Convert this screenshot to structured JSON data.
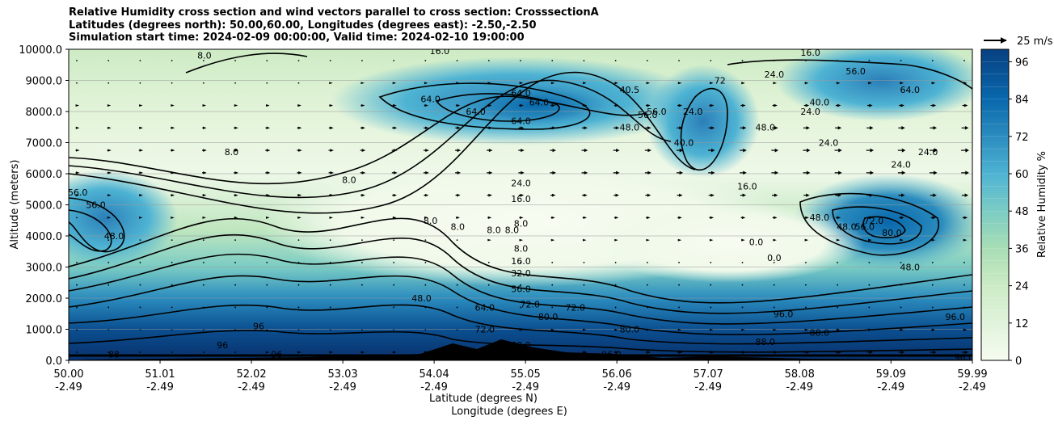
{
  "chart_data": {
    "type": "heatmap",
    "title_lines": [
      "Relative Humidity cross section and wind vectors parallel to cross section: CrosssectionA",
      "Latitudes (degrees north): 50.00,60.00, Longitudes (degrees east): -2.50,-2.50",
      "Simulation start time: 2024-02-09 00:00:00, Valid time: 2024-02-10 19:00:00"
    ],
    "xlabel_lines": [
      "Latitude (degrees N)",
      "Longitude (degrees E)"
    ],
    "ylabel": "Altitude (meters)",
    "xlim": [
      50.0,
      59.99
    ],
    "ylim": [
      0,
      10000
    ],
    "x_ticks": [
      {
        "lat": "50.00",
        "lon": "-2.49"
      },
      {
        "lat": "51.01",
        "lon": "-2.49"
      },
      {
        "lat": "52.02",
        "lon": "-2.49"
      },
      {
        "lat": "53.03",
        "lon": "-2.49"
      },
      {
        "lat": "54.04",
        "lon": "-2.49"
      },
      {
        "lat": "55.05",
        "lon": "-2.49"
      },
      {
        "lat": "56.06",
        "lon": "-2.49"
      },
      {
        "lat": "57.07",
        "lon": "-2.49"
      },
      {
        "lat": "58.08",
        "lon": "-2.49"
      },
      {
        "lat": "59.09",
        "lon": "-2.49"
      },
      {
        "lat": "59.99",
        "lon": "-2.49"
      }
    ],
    "y_ticks": [
      "0.0",
      "1000.0",
      "2000.0",
      "3000.0",
      "4000.0",
      "5000.0",
      "6000.0",
      "7000.0",
      "8000.0",
      "9000.0",
      "10000.0"
    ],
    "grid": true,
    "colorbar": {
      "label": "Relative Humidity %",
      "ticks": [
        "0",
        "12",
        "24",
        "36",
        "48",
        "60",
        "72",
        "84",
        "96"
      ],
      "range": [
        0,
        100
      ],
      "levels": 25
    },
    "wind_key": "25 m/s",
    "contour_labels": [
      {
        "text": "8.0",
        "lat": 51.5,
        "alt": 9800
      },
      {
        "text": "16.0",
        "lat": 54.1,
        "alt": 9950
      },
      {
        "text": "56.0",
        "lat": 50.1,
        "alt": 5400
      },
      {
        "text": "56.0",
        "lat": 50.3,
        "alt": 5000
      },
      {
        "text": "48.0",
        "lat": 50.5,
        "alt": 4000
      },
      {
        "text": "8.0",
        "lat": 51.8,
        "alt": 6700
      },
      {
        "text": "8.0",
        "lat": 53.1,
        "alt": 5800
      },
      {
        "text": "64.0",
        "lat": 54.0,
        "alt": 8400
      },
      {
        "text": "64.0",
        "lat": 55.0,
        "alt": 8600
      },
      {
        "text": "64.0",
        "lat": 54.5,
        "alt": 8000
      },
      {
        "text": "64.0",
        "lat": 55.0,
        "alt": 7700
      },
      {
        "text": "64.0",
        "lat": 55.2,
        "alt": 8300
      },
      {
        "text": "24.0",
        "lat": 55.0,
        "alt": 5700
      },
      {
        "text": "16.0",
        "lat": 55.0,
        "alt": 5200
      },
      {
        "text": "8.0",
        "lat": 54.0,
        "alt": 4500
      },
      {
        "text": "8.0",
        "lat": 54.3,
        "alt": 4300
      },
      {
        "text": "8.0",
        "lat": 54.7,
        "alt": 4200
      },
      {
        "text": "8.0",
        "lat": 54.9,
        "alt": 4200
      },
      {
        "text": "8.0",
        "lat": 55.0,
        "alt": 4400
      },
      {
        "text": "8.0",
        "lat": 55.0,
        "alt": 3600
      },
      {
        "text": "16.0",
        "lat": 55.0,
        "alt": 3200
      },
      {
        "text": "32.0",
        "lat": 55.0,
        "alt": 2800
      },
      {
        "text": "56.0",
        "lat": 55.0,
        "alt": 2300
      },
      {
        "text": "72.0",
        "lat": 55.1,
        "alt": 1800
      },
      {
        "text": "72.0",
        "lat": 55.6,
        "alt": 1700
      },
      {
        "text": "80.0",
        "lat": 55.3,
        "alt": 1400
      },
      {
        "text": "48.0",
        "lat": 53.9,
        "alt": 2000
      },
      {
        "text": "64.0",
        "lat": 54.6,
        "alt": 1700
      },
      {
        "text": "72.0",
        "lat": 54.6,
        "alt": 1000
      },
      {
        "text": "80.0",
        "lat": 55.0,
        "alt": 500
      },
      {
        "text": "96",
        "lat": 52.1,
        "alt": 1100
      },
      {
        "text": "96",
        "lat": 51.7,
        "alt": 500
      },
      {
        "text": "96",
        "lat": 52.3,
        "alt": 200
      },
      {
        "text": "88",
        "lat": 50.5,
        "alt": 200
      },
      {
        "text": "80.0",
        "lat": 56.2,
        "alt": 1000
      },
      {
        "text": "96.0",
        "lat": 56.0,
        "alt": 200
      },
      {
        "text": "56.0",
        "lat": 56.5,
        "alt": 8000
      },
      {
        "text": "40.5",
        "lat": 56.2,
        "alt": 8700
      },
      {
        "text": "48.0",
        "lat": 56.2,
        "alt": 7500
      },
      {
        "text": "56.0",
        "lat": 56.4,
        "alt": 7900
      },
      {
        "text": "24.0",
        "lat": 56.9,
        "alt": 8000
      },
      {
        "text": "72",
        "lat": 57.2,
        "alt": 9000
      },
      {
        "text": "40.0",
        "lat": 56.8,
        "alt": 7000
      },
      {
        "text": "24.0",
        "lat": 57.8,
        "alt": 9200
      },
      {
        "text": "16.0",
        "lat": 57.5,
        "alt": 5600
      },
      {
        "text": "48.0",
        "lat": 57.7,
        "alt": 7500
      },
      {
        "text": "40.0",
        "lat": 58.3,
        "alt": 8300
      },
      {
        "text": "24.0",
        "lat": 58.2,
        "alt": 8000
      },
      {
        "text": "24.0",
        "lat": 58.4,
        "alt": 7000
      },
      {
        "text": "24.0",
        "lat": 59.2,
        "alt": 6300
      },
      {
        "text": "24.0",
        "lat": 59.5,
        "alt": 6700
      },
      {
        "text": "16.0",
        "lat": 58.2,
        "alt": 9900
      },
      {
        "text": "56.0",
        "lat": 58.7,
        "alt": 9300
      },
      {
        "text": "64.0",
        "lat": 59.3,
        "alt": 8700
      },
      {
        "text": "0.0",
        "lat": 57.6,
        "alt": 3800
      },
      {
        "text": "0.0",
        "lat": 57.8,
        "alt": 3300
      },
      {
        "text": "48.0",
        "lat": 58.3,
        "alt": 4600
      },
      {
        "text": "48.0",
        "lat": 58.6,
        "alt": 4300
      },
      {
        "text": "56.0",
        "lat": 58.8,
        "alt": 4300
      },
      {
        "text": "72.0",
        "lat": 58.9,
        "alt": 4500
      },
      {
        "text": "80.0",
        "lat": 59.1,
        "alt": 4100
      },
      {
        "text": "48.0",
        "lat": 59.3,
        "alt": 3000
      },
      {
        "text": "96.0",
        "lat": 57.9,
        "alt": 1500
      },
      {
        "text": "88.0",
        "lat": 58.3,
        "alt": 900
      },
      {
        "text": "96.0",
        "lat": 59.8,
        "alt": 1400
      },
      {
        "text": "88.0",
        "lat": 57.7,
        "alt": 600
      },
      {
        "text": "96.0",
        "lat": 59.9,
        "alt": 100
      }
    ]
  }
}
